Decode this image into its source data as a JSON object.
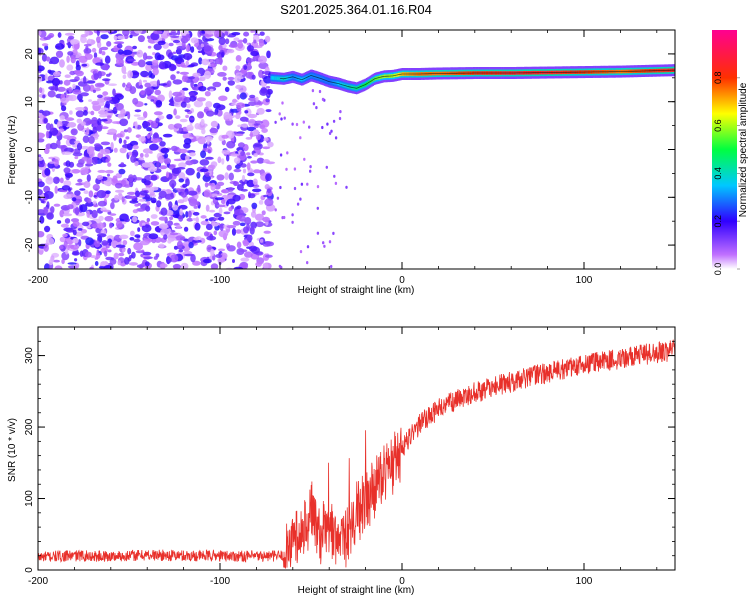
{
  "title": "S201.2025.364.01.16.R04",
  "chart_data": [
    {
      "type": "heatmap",
      "xlabel": "Height of straight line (km)",
      "ylabel": "Frequency (Hz)",
      "xlim": [
        -200,
        150
      ],
      "ylim": [
        -25,
        25
      ],
      "x_ticks": [
        -200,
        -100,
        0,
        100
      ],
      "y_ticks": [
        -20,
        -10,
        0,
        10,
        20
      ],
      "colorbar": {
        "label": "Normalized spectral amplitude",
        "range": [
          0,
          1
        ],
        "ticks": [
          0.0,
          0.2,
          0.4,
          0.6,
          0.8
        ]
      },
      "noise_region_x": [
        -200,
        -72
      ],
      "ridge": {
        "x": [
          -72,
          -65,
          -60,
          -55,
          -50,
          -45,
          -40,
          -35,
          -30,
          -25,
          -20,
          -15,
          -10,
          -5,
          0,
          10,
          20,
          40,
          60,
          80,
          100,
          120,
          150
        ],
        "y": [
          15,
          14.8,
          15.2,
          14.6,
          15.5,
          14.9,
          14.2,
          13.8,
          13.2,
          12.8,
          13.6,
          14.8,
          15.3,
          15.4,
          15.8,
          15.8,
          15.9,
          16.0,
          16.0,
          16.1,
          16.2,
          16.3,
          16.6
        ],
        "amplitude": [
          0.35,
          0.4,
          0.3,
          0.35,
          0.3,
          0.3,
          0.28,
          0.35,
          0.4,
          0.45,
          0.5,
          0.55,
          0.6,
          0.6,
          0.7,
          0.75,
          0.75,
          0.8,
          0.85,
          0.85,
          0.8,
          0.75,
          0.85
        ]
      }
    },
    {
      "type": "line",
      "xlabel": "Height of straight line (km)",
      "ylabel": "SNR (10 * v/v)",
      "xlim": [
        -200,
        150
      ],
      "ylim": [
        0,
        340
      ],
      "x_ticks": [
        -200,
        -100,
        0,
        100
      ],
      "y_ticks": [
        0,
        100,
        200,
        300
      ],
      "series": [
        {
          "color": "#e8302a",
          "x": [
            -200,
            -180,
            -160,
            -140,
            -120,
            -100,
            -80,
            -65,
            -60,
            -55,
            -50,
            -45,
            -40,
            -35,
            -30,
            -25,
            -20,
            -15,
            -10,
            -5,
            0,
            10,
            20,
            30,
            40,
            50,
            60,
            70,
            80,
            90,
            100,
            110,
            120,
            130,
            140,
            150
          ],
          "y": [
            18,
            20,
            19,
            21,
            20,
            20,
            19,
            20,
            45,
            55,
            85,
            50,
            60,
            45,
            40,
            75,
            95,
            115,
            130,
            150,
            170,
            205,
            225,
            238,
            248,
            256,
            263,
            270,
            276,
            282,
            288,
            292,
            296,
            300,
            304,
            308
          ]
        }
      ]
    }
  ]
}
